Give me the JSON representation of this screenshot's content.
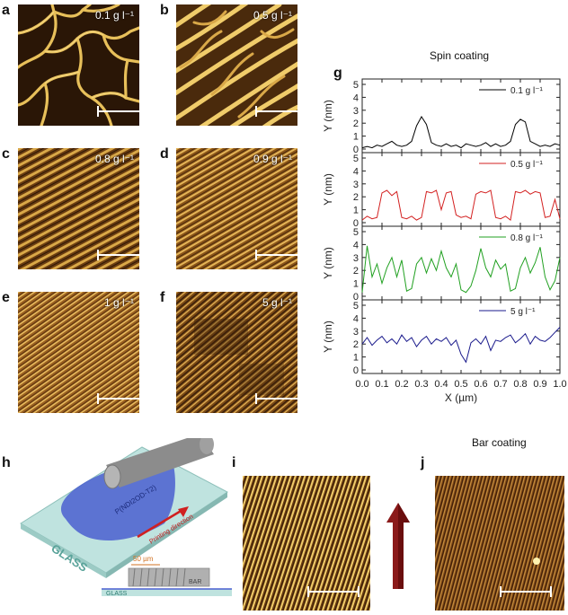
{
  "panels": {
    "a": {
      "letter": "a",
      "conc": "0.1 g l⁻¹"
    },
    "b": {
      "letter": "b",
      "conc": "0.5 g l⁻¹"
    },
    "c": {
      "letter": "c",
      "conc": "0.8 g l⁻¹"
    },
    "d": {
      "letter": "d",
      "conc": "0.9 g l⁻¹"
    },
    "e": {
      "letter": "e",
      "conc": "1 g l⁻¹"
    },
    "f": {
      "letter": "f",
      "conc": "5 g l⁻¹"
    },
    "g": {
      "letter": "g"
    },
    "h": {
      "letter": "h"
    },
    "i": {
      "letter": "i"
    },
    "j": {
      "letter": "j"
    }
  },
  "headers": {
    "spin": "Spin coating",
    "bar": "Bar coating"
  },
  "schematic": {
    "glass_label": "GLASS",
    "polymer_label": "P(NDI2OD-T2)",
    "direction_label": "Printing direction",
    "dimension_label": "50 µm",
    "bar_label": "BAR",
    "glass_side_label": "GLASS"
  },
  "colors": {
    "afm_dark": "#2a1606",
    "afm_light": "#f2d27a",
    "series_01": "#000000",
    "series_05": "#d32020",
    "series_08": "#20a020",
    "series_5": "#1a1a8c",
    "arrow": "#8b1a1a",
    "glass": "#bfe3df",
    "polymer": "#4a5fd0",
    "bar": "#9a9a9a"
  },
  "chart_data": {
    "type": "line",
    "xlabel": "X (µm)",
    "ylabel": "Y (nm)",
    "xlim": [
      0,
      1.0
    ],
    "ylim": [
      0,
      5
    ],
    "xticks": [
      "0.0",
      "0.1",
      "0.2",
      "0.3",
      "0.4",
      "0.5",
      "0.6",
      "0.7",
      "0.8",
      "0.9",
      "1.0"
    ],
    "yticks": [
      "0",
      "1",
      "2",
      "3",
      "4",
      "5"
    ],
    "x": [
      0.0,
      0.025,
      0.05,
      0.075,
      0.1,
      0.125,
      0.15,
      0.175,
      0.2,
      0.225,
      0.25,
      0.275,
      0.3,
      0.325,
      0.35,
      0.375,
      0.4,
      0.425,
      0.45,
      0.475,
      0.5,
      0.525,
      0.55,
      0.575,
      0.6,
      0.625,
      0.65,
      0.675,
      0.7,
      0.725,
      0.75,
      0.775,
      0.8,
      0.825,
      0.85,
      0.875,
      0.9,
      0.925,
      0.95,
      0.975,
      1.0
    ],
    "series": [
      {
        "name": "0.1 g l⁻¹",
        "color": "#000000",
        "values": [
          0.1,
          0.2,
          0.1,
          0.3,
          0.2,
          0.4,
          0.6,
          0.3,
          0.2,
          0.3,
          0.6,
          1.8,
          2.5,
          1.9,
          0.5,
          0.3,
          0.2,
          0.4,
          0.2,
          0.3,
          0.1,
          0.4,
          0.3,
          0.2,
          0.3,
          0.5,
          0.2,
          0.4,
          0.2,
          0.3,
          0.6,
          1.9,
          2.3,
          2.1,
          0.6,
          0.4,
          0.2,
          0.3,
          0.2,
          0.4,
          0.3
        ]
      },
      {
        "name": "0.5 g l⁻¹",
        "color": "#d32020",
        "values": [
          0.2,
          0.5,
          0.3,
          0.4,
          2.3,
          2.5,
          2.1,
          2.4,
          0.4,
          0.3,
          0.5,
          0.2,
          0.4,
          2.4,
          2.3,
          2.5,
          1.0,
          2.3,
          2.4,
          0.6,
          0.4,
          0.5,
          0.3,
          2.2,
          2.4,
          2.3,
          2.5,
          0.4,
          0.3,
          0.5,
          0.2,
          2.4,
          2.3,
          2.5,
          2.2,
          2.4,
          2.3,
          0.4,
          0.5,
          1.8,
          0.3
        ]
      },
      {
        "name": "0.8 g l⁻¹",
        "color": "#20a020",
        "values": [
          0.3,
          3.9,
          1.5,
          2.5,
          1.0,
          2.2,
          3.0,
          1.5,
          2.8,
          0.4,
          0.6,
          2.5,
          3.0,
          1.8,
          2.9,
          2.0,
          3.5,
          2.2,
          1.5,
          2.5,
          0.5,
          0.3,
          0.8,
          2.0,
          3.7,
          2.2,
          1.5,
          2.8,
          2.1,
          2.5,
          0.4,
          0.6,
          2.2,
          3.0,
          1.8,
          2.6,
          3.8,
          1.5,
          0.5,
          1.2,
          3.0
        ]
      },
      {
        "name": "5 g l⁻¹",
        "color": "#1a1a8c",
        "values": [
          2.0,
          2.5,
          1.9,
          2.3,
          2.6,
          2.1,
          2.4,
          2.0,
          2.7,
          2.2,
          2.5,
          1.8,
          2.3,
          2.6,
          2.0,
          2.4,
          2.2,
          2.5,
          1.9,
          2.3,
          1.2,
          0.6,
          2.1,
          2.4,
          2.0,
          2.6,
          1.5,
          2.3,
          2.2,
          2.5,
          2.7,
          2.1,
          2.4,
          2.8,
          2.0,
          2.6,
          2.3,
          2.2,
          2.5,
          2.9,
          3.3
        ]
      }
    ]
  }
}
